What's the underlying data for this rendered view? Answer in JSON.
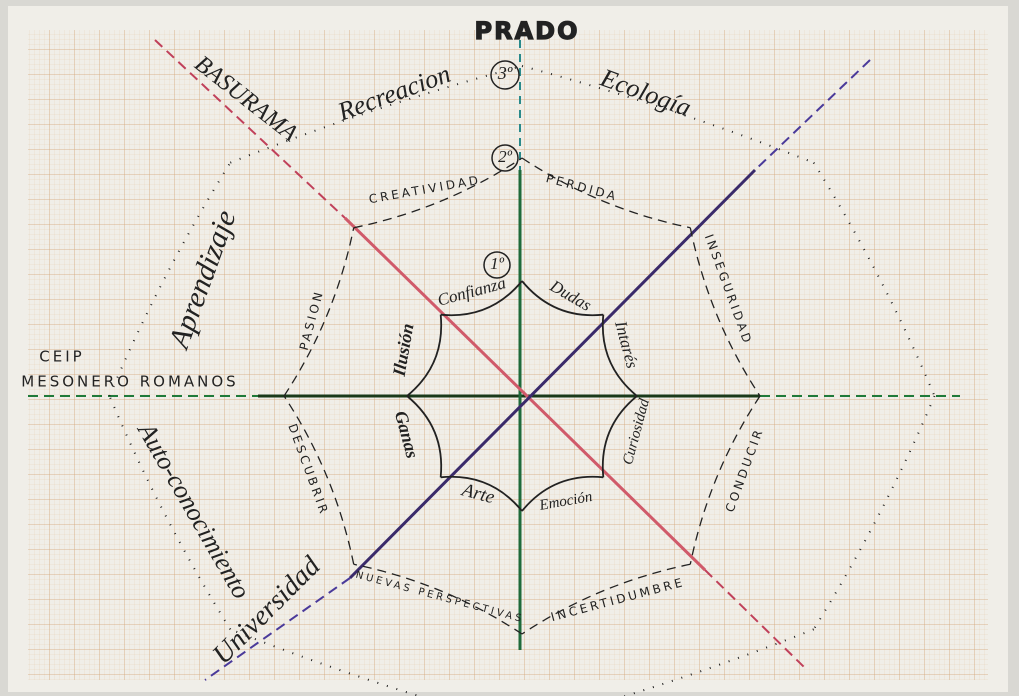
{
  "header": {
    "title": "PRADO",
    "top_left": "BASURAMA",
    "left": [
      "CEIP",
      "MESONERO ROMANOS"
    ],
    "bottom_left": "Universidad"
  },
  "rings": [
    {
      "number": "1º",
      "words": [
        "Confianza",
        "Dudas",
        "Intarés",
        "Curiosidad",
        "Emoción",
        "Arte",
        "Ganas",
        "Ilusión"
      ]
    },
    {
      "number": "2º",
      "words": [
        "CREATIVIDAD",
        "PERDIDA",
        "INSEGURIDAD",
        "CONDUCIR",
        "INCERTIDUMBRE",
        "NUEVAS PERSPECTIVAS",
        "DESCUBRIR",
        "PASION"
      ]
    },
    {
      "number": "3º",
      "words": [
        "Recreacion",
        "Ecología",
        "Aprendizaje",
        "Auto-conocimiento"
      ]
    }
  ]
}
